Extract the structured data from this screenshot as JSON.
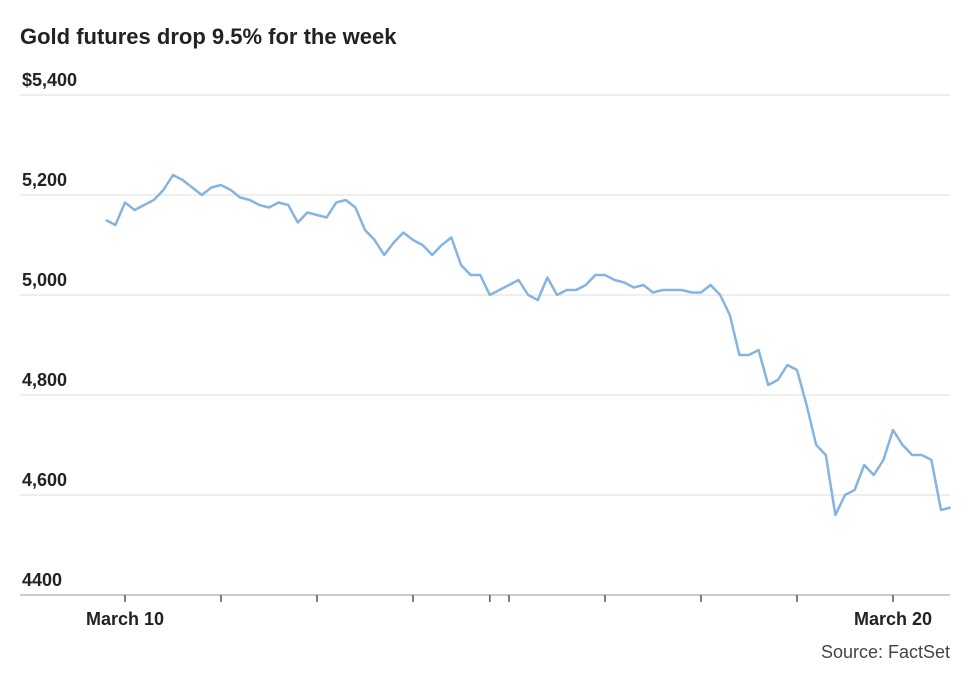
{
  "chart_data": {
    "type": "line",
    "title": "Gold futures drop 9.5% for the week",
    "source": "Source: FactSet",
    "categories": [
      null,
      null,
      "March 10",
      null,
      null,
      null,
      null,
      null,
      null,
      null,
      null,
      null,
      null,
      null,
      null,
      null,
      null,
      null,
      null,
      null,
      null,
      null,
      null,
      null,
      null,
      null,
      null,
      null,
      null,
      null,
      null,
      null,
      null,
      null,
      null,
      null,
      null,
      null,
      null,
      null,
      null,
      null,
      null,
      null,
      null,
      null,
      null,
      null,
      null,
      null,
      null,
      null,
      null,
      null,
      null,
      null,
      null,
      null,
      null,
      null,
      null,
      null,
      null,
      null,
      null,
      null,
      null,
      null,
      null,
      null,
      null,
      null,
      null,
      null,
      null,
      null,
      null,
      null,
      null,
      null,
      null,
      null,
      "March 20",
      null,
      null,
      null,
      null,
      null,
      null
    ],
    "xticks": [
      2,
      12,
      22,
      32,
      40,
      42,
      52,
      62,
      72,
      82
    ],
    "series": [
      {
        "name": "Gold futures",
        "color": "#86b4e0",
        "values": [
          5150,
          5140,
          5185,
          5170,
          5180,
          5190,
          5210,
          5240,
          5230,
          5215,
          5200,
          5215,
          5220,
          5210,
          5195,
          5190,
          5180,
          5175,
          5185,
          5180,
          5145,
          5165,
          5160,
          5155,
          5185,
          5190,
          5175,
          5130,
          5110,
          5080,
          5105,
          5125,
          5110,
          5100,
          5080,
          5100,
          5115,
          5060,
          5040,
          5040,
          5000,
          5010,
          5020,
          5030,
          5000,
          4990,
          5035,
          5000,
          5010,
          5010,
          5020,
          5040,
          5040,
          5030,
          5025,
          5015,
          5020,
          5005,
          5010,
          5010,
          5010,
          5005,
          5005,
          5020,
          5000,
          4960,
          4880,
          4880,
          4890,
          4820,
          4830,
          4860,
          4850,
          4780,
          4700,
          4680,
          4560,
          4600,
          4610,
          4660,
          4640,
          4670,
          4730,
          4700,
          4680,
          4680,
          4670,
          4570,
          4575
        ]
      }
    ],
    "ylim": [
      4400,
      5400
    ],
    "yticks": [
      4400,
      {
        "value": 4600,
        "label": "4,600"
      },
      {
        "value": 4800,
        "label": "4,800"
      },
      {
        "value": 5000,
        "label": "5,000"
      },
      {
        "value": 5200,
        "label": "5,200"
      },
      {
        "value": 5400,
        "label": "$5,400"
      }
    ],
    "grid": true
  }
}
